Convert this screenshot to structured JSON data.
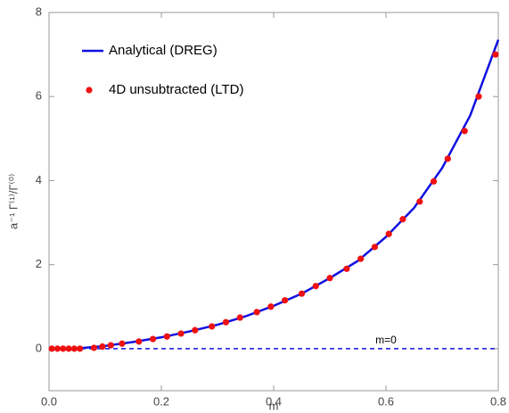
{
  "chart_data": {
    "type": "line",
    "xlabel": "m",
    "ylabel": "a⁻¹ Γ⁽¹⁾/Γ⁽⁰⁾",
    "xlim": [
      0,
      0.8
    ],
    "ylim": [
      -1,
      8
    ],
    "xticks": [
      {
        "value": 0,
        "label": "0.0"
      },
      0.2,
      0.4,
      0.6,
      0.8
    ],
    "yticks": [
      0,
      2,
      4,
      6,
      8
    ],
    "legend": "upper left",
    "series": [
      {
        "name": "Analytical (DREG)",
        "color": "#1010e0",
        "kind": "line",
        "x": [
          0,
          0.05,
          0.1,
          0.15,
          0.2,
          0.25,
          0.3,
          0.35,
          0.4,
          0.45,
          0.5,
          0.55,
          0.6,
          0.65,
          0.7,
          0.75,
          0.8
        ],
        "values": [
          0,
          0.005,
          0.065,
          0.16,
          0.27,
          0.41,
          0.57,
          0.77,
          1.02,
          1.31,
          1.68,
          2.09,
          2.66,
          3.35,
          4.3,
          5.55,
          7.35
        ]
      },
      {
        "name": "4D unsubtracted (LTD)",
        "color": "#ee1111",
        "kind": "scatter",
        "x": [
          0.005,
          0.015,
          0.025,
          0.035,
          0.045,
          0.055,
          0.08,
          0.095,
          0.11,
          0.13,
          0.16,
          0.185,
          0.21,
          0.235,
          0.26,
          0.29,
          0.315,
          0.34,
          0.37,
          0.395,
          0.42,
          0.45,
          0.475,
          0.5,
          0.53,
          0.555,
          0.58,
          0.605,
          0.63,
          0.66,
          0.685,
          0.71,
          0.74,
          0.765,
          0.795
        ],
        "values": [
          0,
          0,
          0,
          0,
          0,
          0,
          0.02,
          0.05,
          0.08,
          0.12,
          0.17,
          0.23,
          0.29,
          0.36,
          0.44,
          0.53,
          0.63,
          0.74,
          0.87,
          1.0,
          1.15,
          1.31,
          1.49,
          1.68,
          1.9,
          2.14,
          2.42,
          2.73,
          3.08,
          3.5,
          3.98,
          4.52,
          5.18,
          6.0,
          7.0
        ]
      }
    ],
    "reference_line": {
      "label": "m=0",
      "value": 0,
      "color": "#1010e0",
      "dashed": true
    }
  }
}
